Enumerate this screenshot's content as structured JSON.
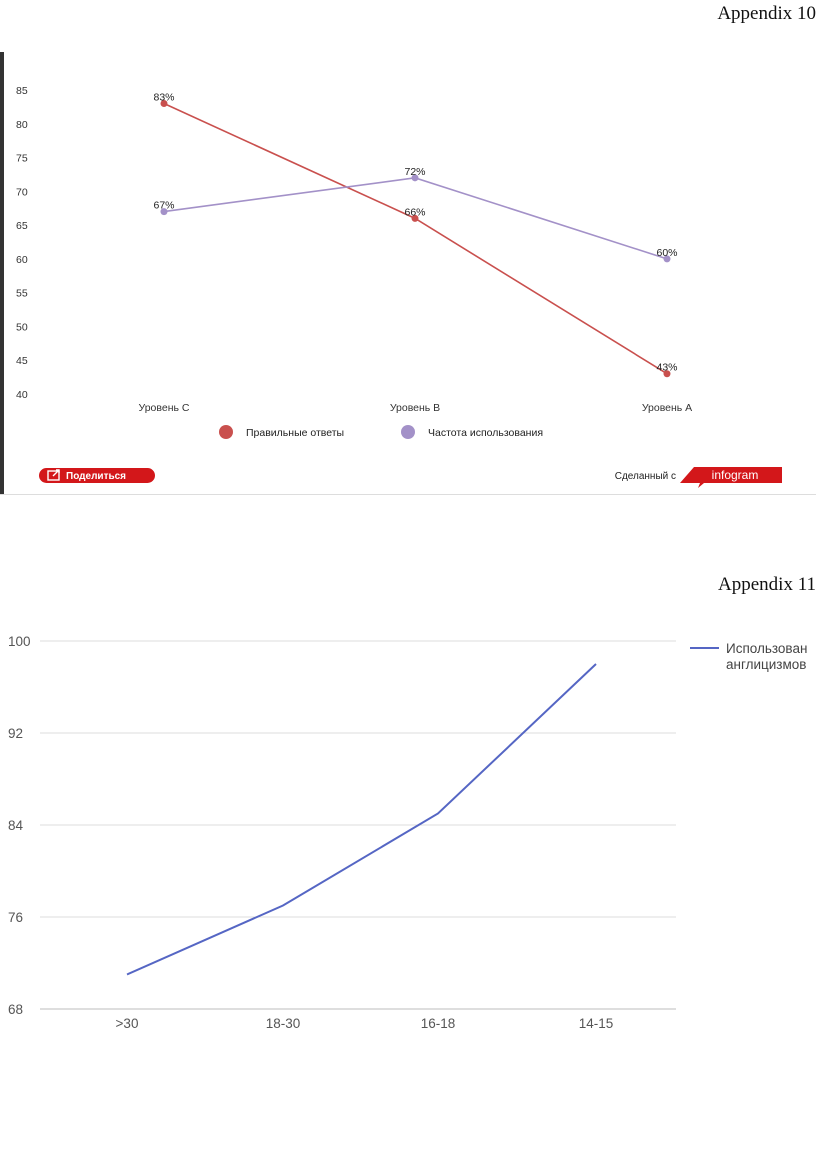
{
  "page": {
    "appendix_10": "Appendix 10",
    "appendix_11": "Appendix 11"
  },
  "infogram": {
    "share_label": "Поделиться",
    "made_with": "Сделанный с",
    "brand": "infogram",
    "brand_color": "#d3171a"
  },
  "chart_data": [
    {
      "type": "line",
      "categories": [
        "Уровень С",
        "Уровень В",
        "Уровень А"
      ],
      "yticks": [
        40,
        45,
        50,
        55,
        60,
        65,
        70,
        75,
        80,
        85
      ],
      "ylim": [
        40,
        85
      ],
      "grid": false,
      "legend": "bottom",
      "series": [
        {
          "name": "Правильные ответы",
          "color": "#c9504e",
          "values": [
            83,
            66,
            43
          ],
          "labels": [
            "83%",
            "66%",
            "43%"
          ]
        },
        {
          "name": "Частота использования",
          "color": "#a391c8",
          "values": [
            67,
            72,
            60
          ],
          "labels": [
            "67%",
            "72%",
            "60%"
          ]
        }
      ]
    },
    {
      "type": "line",
      "categories": [
        ">30",
        "18-30",
        "16-18",
        "14-15"
      ],
      "yticks": [
        68,
        76,
        84,
        92,
        100
      ],
      "ylim": [
        68,
        100
      ],
      "grid": true,
      "legend": "right",
      "series": [
        {
          "name": "Использование англицизмов",
          "name_lines": [
            "Использован",
            "англицизмов"
          ],
          "color": "#5566c4",
          "values": [
            71,
            77,
            85,
            98
          ]
        }
      ]
    }
  ]
}
